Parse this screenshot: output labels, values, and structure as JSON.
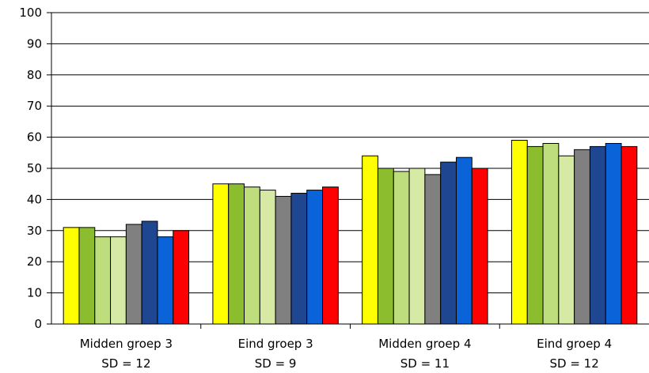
{
  "chart_data": {
    "type": "bar",
    "categories": [
      "Midden groep 3",
      "Eind groep 3",
      "Midden groep 4",
      "Eind groep 4"
    ],
    "subcategory_labels": [
      "SD = 12",
      "SD = 9",
      "SD = 11",
      "SD = 12"
    ],
    "ylim": [
      0,
      100
    ],
    "yticks": [
      0,
      10,
      20,
      30,
      40,
      50,
      60,
      70,
      80,
      90,
      100
    ],
    "grid": true,
    "series": [
      {
        "color": "#ffff00",
        "values": [
          31,
          45,
          54,
          59
        ]
      },
      {
        "color": "#8cbd2f",
        "values": [
          31,
          45,
          50,
          57
        ]
      },
      {
        "color": "#bedd7d",
        "values": [
          28,
          44,
          49,
          58
        ]
      },
      {
        "color": "#d6eaa6",
        "values": [
          28,
          43,
          50,
          54
        ]
      },
      {
        "color": "#808080",
        "values": [
          32,
          41,
          48,
          56
        ]
      },
      {
        "color": "#1f4690",
        "values": [
          33,
          42,
          52,
          57
        ]
      },
      {
        "color": "#0a63d8",
        "values": [
          28,
          43,
          53.5,
          58
        ]
      },
      {
        "color": "#ff0000",
        "values": [
          30,
          44,
          50,
          57
        ]
      }
    ]
  }
}
